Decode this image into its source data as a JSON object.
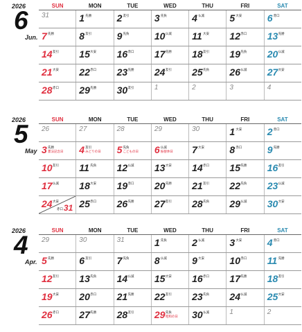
{
  "weekdays": [
    "SUN",
    "MON",
    "TUE",
    "WED",
    "THU",
    "FRI",
    "SAT"
  ],
  "colors": {
    "sunday": "#e03040",
    "saturday": "#2a8ab0",
    "text": "#222222"
  },
  "months": [
    {
      "year": "2026",
      "num": "6",
      "name": "Jun.",
      "weeks": [
        [
          {
            "d": "31",
            "t": "dim-red"
          },
          {
            "d": "1",
            "r": "先勝"
          },
          {
            "d": "2",
            "r": "友引"
          },
          {
            "d": "3",
            "r": "先負"
          },
          {
            "d": "4",
            "r": "仏滅"
          },
          {
            "d": "5",
            "r": "大安"
          },
          {
            "d": "6",
            "r": "赤口",
            "t": "sat"
          }
        ],
        [
          {
            "d": "7",
            "r": "先勝",
            "t": "sun"
          },
          {
            "d": "8",
            "r": "友引"
          },
          {
            "d": "9",
            "r": "先負"
          },
          {
            "d": "10",
            "r": "仏滅"
          },
          {
            "d": "11",
            "r": "大安"
          },
          {
            "d": "12",
            "r": "赤口"
          },
          {
            "d": "13",
            "r": "先勝",
            "t": "sat"
          }
        ],
        [
          {
            "d": "14",
            "r": "友引",
            "t": "sun"
          },
          {
            "d": "15",
            "r": "大安"
          },
          {
            "d": "16",
            "r": "赤口"
          },
          {
            "d": "17",
            "r": "先勝"
          },
          {
            "d": "18",
            "r": "友引"
          },
          {
            "d": "19",
            "r": "先負"
          },
          {
            "d": "20",
            "r": "仏滅",
            "t": "sat"
          }
        ],
        [
          {
            "d": "21",
            "r": "大安",
            "t": "sun"
          },
          {
            "d": "22",
            "r": "赤口"
          },
          {
            "d": "23",
            "r": "先勝"
          },
          {
            "d": "24",
            "r": "友引"
          },
          {
            "d": "25",
            "r": "先負"
          },
          {
            "d": "26",
            "r": "仏滅"
          },
          {
            "d": "27",
            "r": "大安",
            "t": "sat"
          }
        ],
        [
          {
            "d": "28",
            "r": "赤口",
            "t": "sun"
          },
          {
            "d": "29",
            "r": "先勝"
          },
          {
            "d": "30",
            "r": "友引"
          },
          {
            "d": "1",
            "t": "dim-gray"
          },
          {
            "d": "2",
            "t": "dim-gray"
          },
          {
            "d": "3",
            "t": "dim-gray"
          },
          {
            "d": "4",
            "t": "dim-blue"
          }
        ]
      ]
    },
    {
      "year": "2026",
      "num": "5",
      "name": "May",
      "weeks": [
        [
          {
            "d": "26",
            "t": "dim-red"
          },
          {
            "d": "27",
            "t": "dim-gray"
          },
          {
            "d": "28",
            "t": "dim-gray"
          },
          {
            "d": "29",
            "t": "dim-red"
          },
          {
            "d": "30",
            "t": "dim-gray"
          },
          {
            "d": "1",
            "r": "大安"
          },
          {
            "d": "2",
            "r": "赤口",
            "t": "sat"
          }
        ],
        [
          {
            "d": "3",
            "r": "先勝",
            "h": "憲法記念日",
            "t": "sun"
          },
          {
            "d": "4",
            "r": "友引",
            "h": "みどりの日",
            "t": "sun"
          },
          {
            "d": "5",
            "r": "先負",
            "h": "こどもの日",
            "t": "sun"
          },
          {
            "d": "6",
            "r": "仏滅",
            "h": "振替休日",
            "t": "sun"
          },
          {
            "d": "7",
            "r": "大安"
          },
          {
            "d": "8",
            "r": "赤口"
          },
          {
            "d": "9",
            "r": "先勝",
            "t": "sat"
          }
        ],
        [
          {
            "d": "10",
            "r": "友引",
            "t": "sun"
          },
          {
            "d": "11",
            "r": "先負"
          },
          {
            "d": "12",
            "r": "仏滅"
          },
          {
            "d": "13",
            "r": "大安"
          },
          {
            "d": "14",
            "r": "赤口"
          },
          {
            "d": "15",
            "r": "先勝"
          },
          {
            "d": "16",
            "r": "友引",
            "t": "sat"
          }
        ],
        [
          {
            "d": "17",
            "r": "仏滅",
            "t": "sun"
          },
          {
            "d": "18",
            "r": "大安"
          },
          {
            "d": "19",
            "r": "赤口"
          },
          {
            "d": "20",
            "r": "先勝"
          },
          {
            "d": "21",
            "r": "友引"
          },
          {
            "d": "22",
            "r": "先負"
          },
          {
            "d": "23",
            "r": "仏滅",
            "t": "sat"
          }
        ],
        [
          {
            "d": "24",
            "r": "大安",
            "t": "sun",
            "split": {
              "d": "31",
              "r": "赤口"
            }
          },
          {
            "d": "25",
            "r": "赤口"
          },
          {
            "d": "26",
            "r": "先勝"
          },
          {
            "d": "27",
            "r": "友引"
          },
          {
            "d": "28",
            "r": "先負"
          },
          {
            "d": "29",
            "r": "仏滅"
          },
          {
            "d": "30",
            "r": "大安",
            "t": "sat"
          }
        ]
      ]
    },
    {
      "year": "2026",
      "num": "4",
      "name": "Apr.",
      "weeks": [
        [
          {
            "d": "29",
            "t": "dim-red"
          },
          {
            "d": "30",
            "t": "dim-gray"
          },
          {
            "d": "31",
            "t": "dim-gray"
          },
          {
            "d": "1",
            "r": "先負"
          },
          {
            "d": "2",
            "r": "仏滅"
          },
          {
            "d": "3",
            "r": "大安"
          },
          {
            "d": "4",
            "r": "赤口",
            "t": "sat"
          }
        ],
        [
          {
            "d": "5",
            "r": "先勝",
            "t": "sun"
          },
          {
            "d": "6",
            "r": "友引"
          },
          {
            "d": "7",
            "r": "先負"
          },
          {
            "d": "8",
            "r": "仏滅"
          },
          {
            "d": "9",
            "r": "大安"
          },
          {
            "d": "10",
            "r": "赤口"
          },
          {
            "d": "11",
            "r": "先勝",
            "t": "sat"
          }
        ],
        [
          {
            "d": "12",
            "r": "友引",
            "t": "sun"
          },
          {
            "d": "13",
            "r": "先負"
          },
          {
            "d": "14",
            "r": "仏滅"
          },
          {
            "d": "15",
            "r": "大安"
          },
          {
            "d": "16",
            "r": "赤口"
          },
          {
            "d": "17",
            "r": "先勝"
          },
          {
            "d": "18",
            "r": "友引",
            "t": "sat"
          }
        ],
        [
          {
            "d": "19",
            "r": "大安",
            "t": "sun"
          },
          {
            "d": "20",
            "r": "赤口"
          },
          {
            "d": "21",
            "r": "先勝"
          },
          {
            "d": "22",
            "r": "友引"
          },
          {
            "d": "23",
            "r": "先負"
          },
          {
            "d": "24",
            "r": "仏滅"
          },
          {
            "d": "25",
            "r": "大安",
            "t": "sat"
          }
        ],
        [
          {
            "d": "26",
            "r": "赤口",
            "t": "sun"
          },
          {
            "d": "27",
            "r": "先勝"
          },
          {
            "d": "28",
            "r": "友引"
          },
          {
            "d": "29",
            "r": "先負",
            "h": "昭和の日",
            "t": "sun"
          },
          {
            "d": "30",
            "r": "仏滅"
          },
          {
            "d": "1",
            "t": "dim-gray"
          },
          {
            "d": "2",
            "t": "dim-blue"
          }
        ]
      ]
    }
  ]
}
